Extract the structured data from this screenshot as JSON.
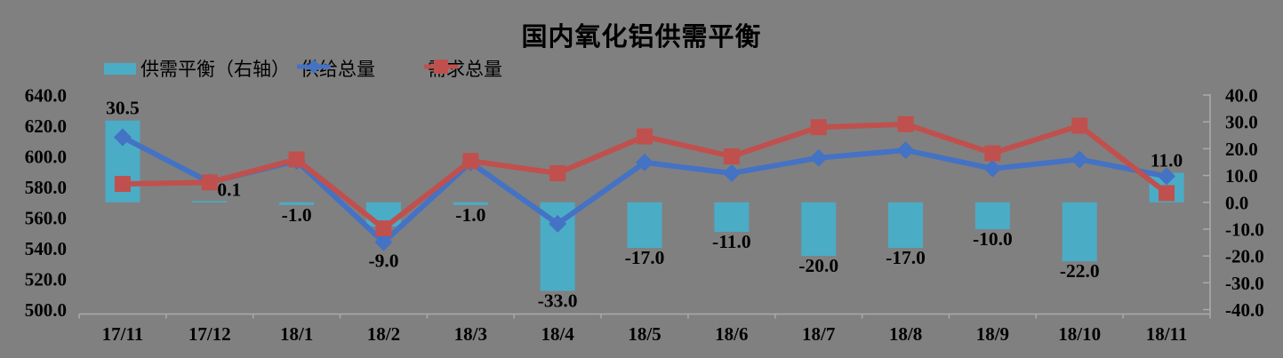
{
  "colors": {
    "background": "#808080",
    "bar": "#4BACC6",
    "supply_line": "#4472C4",
    "demand_line": "#C0504D",
    "axis_line": "#AAAAAA",
    "text": "#000000"
  },
  "chart_data": {
    "type": "combo-bar-line",
    "title": "国内氧化铝供需平衡",
    "categories": [
      "17/11",
      "17/12",
      "18/1",
      "18/2",
      "18/3",
      "18/4",
      "18/5",
      "18/6",
      "18/7",
      "18/8",
      "18/9",
      "18/10",
      "18/11"
    ],
    "series": [
      {
        "name": "供需平衡（右轴）",
        "type": "bar",
        "axis": "right",
        "values": [
          30.5,
          0.1,
          -1.0,
          -9.0,
          -1.0,
          -33.0,
          -17.0,
          -11.0,
          -20.0,
          -17.0,
          -10.0,
          -22.0,
          11.0
        ],
        "data_labels": true
      },
      {
        "name": "供给总量",
        "type": "line",
        "marker": "diamond",
        "axis": "left",
        "values": [
          612.5,
          583.1,
          597.0,
          544.0,
          596.0,
          556.0,
          596.0,
          589.0,
          599.0,
          604.0,
          592.0,
          598.0,
          587.0
        ]
      },
      {
        "name": "需求总量",
        "type": "line",
        "marker": "square",
        "axis": "left",
        "values": [
          582.0,
          583.0,
          598.0,
          553.0,
          597.0,
          589.0,
          613.0,
          600.0,
          619.0,
          621.0,
          602.0,
          620.0,
          576.0
        ]
      }
    ],
    "left_axis": {
      "range": [
        500,
        640
      ],
      "step": 20,
      "tick_labels": [
        "640.0",
        "620.0",
        "600.0",
        "580.0",
        "560.0",
        "540.0",
        "520.0",
        "500.0"
      ]
    },
    "right_axis": {
      "range": [
        -40,
        40
      ],
      "step": 10,
      "tick_labels": [
        "40.0",
        "30.0",
        "20.0",
        "10.0",
        "0.0",
        "-10.0",
        "-20.0",
        "-30.0",
        "-40.0"
      ]
    },
    "legend": {
      "position": "top-left",
      "entries": [
        "供需平衡（右轴）",
        "供给总量",
        "需求总量"
      ]
    },
    "grid": false
  }
}
